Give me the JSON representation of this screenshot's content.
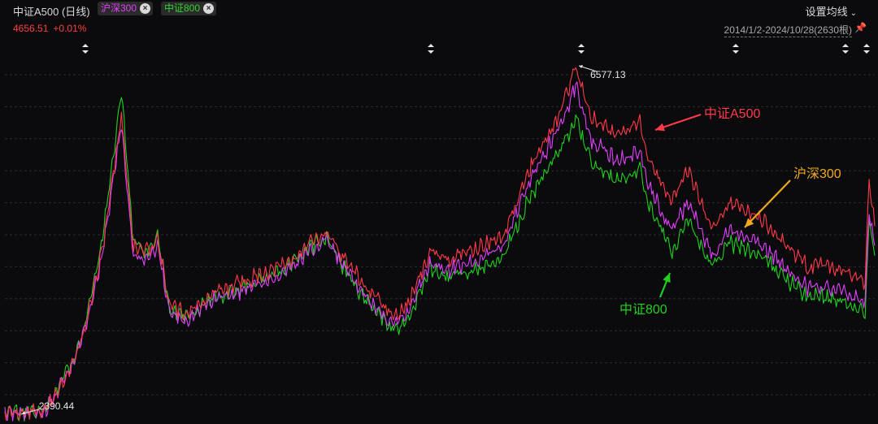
{
  "header": {
    "title": "中证A500 (日线)",
    "tags": [
      {
        "label": "沪深300",
        "color": "#e040fb"
      },
      {
        "label": "中证800",
        "color": "#2ed42e"
      }
    ],
    "settings_label": "设置均线",
    "quote_value": "4656.51",
    "quote_change": "+0.01%",
    "range_label": "2014/1/2-2024/10/28(2630根)"
  },
  "colors": {
    "a500": "#ff3a4a",
    "hs300": "#e040fb",
    "zz800": "#20d020",
    "hs300_annotation": "#f0a81e",
    "background": "#0b0b0d",
    "grid": "#2e2e2e"
  },
  "chart_data": {
    "type": "line",
    "x_range": [
      "2014/1/2",
      "2024/10/28"
    ],
    "bar_count": 2630,
    "y_min_label": "2390.44",
    "y_max_label": "6577.13",
    "series": [
      {
        "name": "中证A500",
        "x": [
          2014.0,
          2014.5,
          2014.85,
          2015.0,
          2015.2,
          2015.4,
          2015.45,
          2015.6,
          2015.75,
          2015.9,
          2016.05,
          2016.25,
          2016.6,
          2017.0,
          2017.5,
          2018.0,
          2018.2,
          2018.5,
          2018.85,
          2019.0,
          2019.3,
          2019.5,
          2019.9,
          2020.2,
          2020.5,
          2020.9,
          2021.1,
          2021.3,
          2021.6,
          2021.9,
          2022.0,
          2022.3,
          2022.5,
          2022.8,
          2023.0,
          2023.4,
          2023.8,
          2024.0,
          2024.1,
          2024.6,
          2024.7,
          2024.75,
          2024.82
        ],
        "values": [
          2400,
          2430,
          3000,
          3450,
          4300,
          5650,
          6000,
          4400,
          4350,
          4500,
          3700,
          3600,
          3850,
          4000,
          4200,
          4600,
          4300,
          3900,
          3550,
          3700,
          4350,
          4250,
          4400,
          4550,
          5300,
          6000,
          6577,
          5950,
          5750,
          5900,
          5500,
          4950,
          5350,
          4600,
          4950,
          4750,
          4350,
          4150,
          4200,
          4050,
          3950,
          5200,
          4656
        ]
      },
      {
        "name": "沪深300",
        "x": [
          2014.0,
          2014.5,
          2014.85,
          2015.0,
          2015.2,
          2015.4,
          2015.45,
          2015.6,
          2015.75,
          2015.9,
          2016.05,
          2016.25,
          2016.6,
          2017.0,
          2017.5,
          2018.0,
          2018.2,
          2018.5,
          2018.85,
          2019.0,
          2019.3,
          2019.5,
          2019.9,
          2020.2,
          2020.5,
          2020.9,
          2021.1,
          2021.3,
          2021.6,
          2021.9,
          2022.0,
          2022.3,
          2022.5,
          2022.8,
          2023.0,
          2023.4,
          2023.8,
          2024.0,
          2024.1,
          2024.6,
          2024.7,
          2024.75,
          2024.82
        ],
        "values": [
          2390,
          2420,
          2990,
          3430,
          4250,
          5550,
          5850,
          4300,
          4250,
          4400,
          3600,
          3520,
          3770,
          3900,
          4110,
          4500,
          4180,
          3780,
          3450,
          3600,
          4230,
          4130,
          4260,
          4420,
          5150,
          5850,
          6350,
          5700,
          5450,
          5550,
          5150,
          4600,
          4950,
          4300,
          4600,
          4430,
          4080,
          3900,
          3950,
          3800,
          3720,
          4850,
          4420
        ]
      },
      {
        "name": "中证800",
        "x": [
          2014.0,
          2014.5,
          2014.85,
          2015.0,
          2015.2,
          2015.4,
          2015.45,
          2015.6,
          2015.75,
          2015.9,
          2016.05,
          2016.25,
          2016.6,
          2017.0,
          2017.5,
          2018.0,
          2018.2,
          2018.5,
          2018.85,
          2019.0,
          2019.3,
          2019.5,
          2019.9,
          2020.2,
          2020.5,
          2020.9,
          2021.1,
          2021.3,
          2021.6,
          2021.9,
          2022.0,
          2022.3,
          2022.5,
          2022.8,
          2023.0,
          2023.4,
          2023.8,
          2024.0,
          2024.1,
          2024.6,
          2024.7,
          2024.75,
          2024.82
        ],
        "values": [
          2400,
          2440,
          3050,
          3500,
          4400,
          5900,
          6300,
          4450,
          4350,
          4500,
          3650,
          3560,
          3800,
          3930,
          4150,
          4550,
          4180,
          3750,
          3380,
          3520,
          4150,
          4040,
          4150,
          4280,
          4950,
          5550,
          5950,
          5400,
          5200,
          5350,
          4950,
          4350,
          4750,
          4150,
          4450,
          4300,
          3950,
          3780,
          3840,
          3680,
          3600,
          4720,
          4300
        ]
      }
    ],
    "annotations": [
      {
        "text": "6577.13",
        "series": "中证A500",
        "x": 2021.1,
        "y": 6577
      },
      {
        "text": "2390.44",
        "series": "沪深300",
        "x": 2014.2,
        "y": 2390
      },
      {
        "text": "中证A500",
        "x": 2022.0,
        "y": 5500,
        "color": "#ff3a4a"
      },
      {
        "text": "沪深300",
        "x": 2022.8,
        "y": 4650,
        "color": "#f0a81e"
      },
      {
        "text": "中证800",
        "x": 2022.3,
        "y": 4350,
        "color": "#20d020"
      }
    ],
    "grid": true,
    "legend": "top-left"
  }
}
